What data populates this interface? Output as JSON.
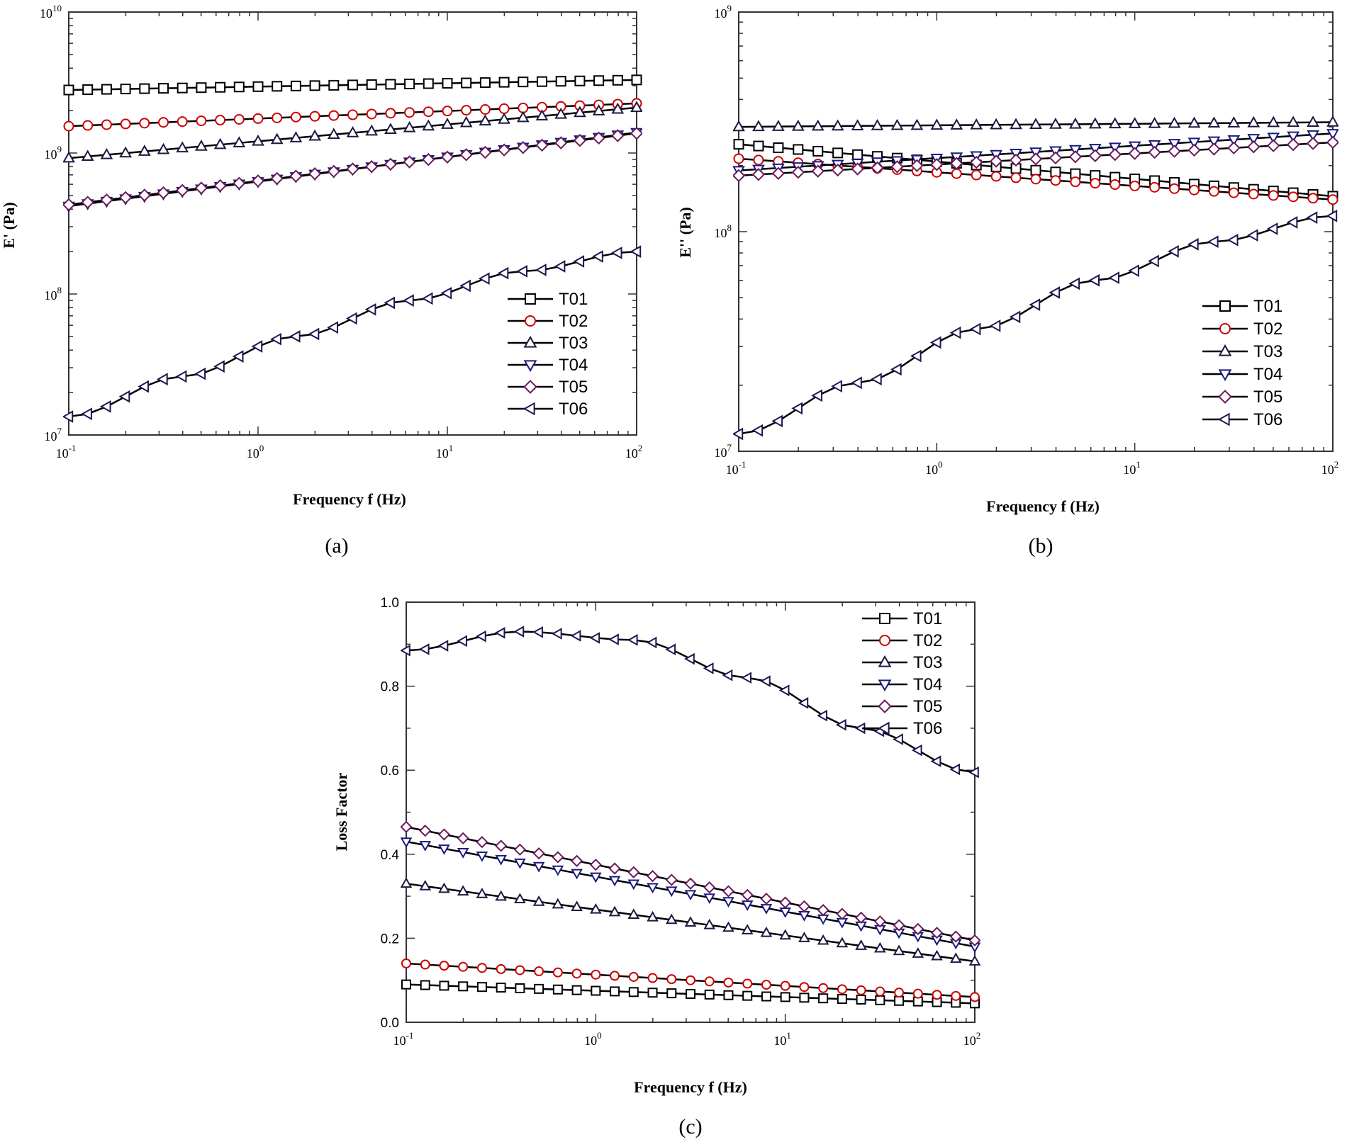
{
  "chart_data": [
    {
      "type": "line",
      "panel_label": "(a)",
      "title": "",
      "xlabel": "Frequency f (Hz)",
      "ylabel": "E' (Pa)",
      "xscale": "log",
      "yscale": "log",
      "xlim": [
        0.1,
        100
      ],
      "ylim": [
        10000000.0,
        10000000000.0
      ],
      "x_ticks": [
        0.1,
        1,
        10,
        100
      ],
      "x_tick_labels": [
        {
          "base": "10",
          "exp": "-1"
        },
        {
          "base": "10",
          "exp": "0"
        },
        {
          "base": "10",
          "exp": "1"
        },
        {
          "base": "10",
          "exp": "2"
        }
      ],
      "y_ticks": [
        10000000.0,
        100000000.0,
        1000000000.0,
        10000000000.0
      ],
      "y_tick_labels": [
        {
          "base": "10",
          "exp": "7"
        },
        {
          "base": "10",
          "exp": "8"
        },
        {
          "base": "10",
          "exp": "9"
        },
        {
          "base": "10",
          "exp": "10"
        }
      ],
      "legend_position": "bottom-right",
      "series": [
        {
          "name": "T01",
          "marker": "square",
          "color": "#000000",
          "start": 2800000000.0,
          "end": 3300000000.0
        },
        {
          "name": "T02",
          "marker": "circle",
          "color": "#cc0000",
          "start": 1550000000.0,
          "end": 2250000000.0
        },
        {
          "name": "T03",
          "marker": "triangle-up",
          "color": "#1a1a40",
          "start": 920000000.0,
          "end": 2100000000.0
        },
        {
          "name": "T04",
          "marker": "triangle-down",
          "color": "#1a1a80",
          "start": 420000000.0,
          "end": 1400000000.0
        },
        {
          "name": "T05",
          "marker": "diamond",
          "color": "#6a1a5a",
          "start": 430000000.0,
          "end": 1380000000.0
        },
        {
          "name": "T06",
          "marker": "triangle-left",
          "color": "#1a1a50",
          "start": 13500000.0,
          "end": 200000000.0,
          "curve": [
            13500000.0,
            26000000.0,
            50000000.0,
            90000000.0,
            145000000.0,
            200000000.0
          ]
        }
      ]
    },
    {
      "type": "line",
      "panel_label": "(b)",
      "title": "",
      "xlabel": "Frequency f (Hz)",
      "ylabel": "E'' (Pa)",
      "xscale": "log",
      "yscale": "log",
      "xlim": [
        0.1,
        100
      ],
      "ylim": [
        10000000.0,
        1000000000.0
      ],
      "x_ticks": [
        0.1,
        1,
        10,
        100
      ],
      "x_tick_labels": [
        {
          "base": "10",
          "exp": "-1"
        },
        {
          "base": "10",
          "exp": "0"
        },
        {
          "base": "10",
          "exp": "1"
        },
        {
          "base": "10",
          "exp": "2"
        }
      ],
      "y_ticks": [
        10000000.0,
        100000000.0,
        1000000000.0
      ],
      "y_tick_labels": [
        {
          "base": "10",
          "exp": "7"
        },
        {
          "base": "10",
          "exp": "8"
        },
        {
          "base": "10",
          "exp": "9"
        }
      ],
      "legend_position": "bottom-right",
      "series": [
        {
          "name": "T01",
          "marker": "square",
          "color": "#000000",
          "start": 250000000.0,
          "end": 145000000.0
        },
        {
          "name": "T02",
          "marker": "circle",
          "color": "#cc0000",
          "start": 215000000.0,
          "end": 140000000.0
        },
        {
          "name": "T03",
          "marker": "triangle-up",
          "color": "#1a1a40",
          "start": 300000000.0,
          "end": 315000000.0
        },
        {
          "name": "T04",
          "marker": "triangle-down",
          "color": "#1a1a80",
          "start": 190000000.0,
          "end": 280000000.0
        },
        {
          "name": "T05",
          "marker": "diamond",
          "color": "#6a1a5a",
          "start": 180000000.0,
          "end": 255000000.0
        },
        {
          "name": "T06",
          "marker": "triangle-left",
          "color": "#1a1a50",
          "start": 12000000.0,
          "end": 118000000.0,
          "curve": [
            12000000.0,
            20500000.0,
            36000000.0,
            60000000.0,
            90000000.0,
            118000000.0
          ]
        }
      ]
    },
    {
      "type": "line",
      "panel_label": "(c)",
      "title": "",
      "xlabel": "Frequency f (Hz)",
      "ylabel": "Loss Factor",
      "xscale": "log",
      "yscale": "linear",
      "xlim": [
        0.1,
        100
      ],
      "ylim": [
        0.0,
        1.0
      ],
      "x_ticks": [
        0.1,
        1,
        10,
        100
      ],
      "x_tick_labels": [
        {
          "base": "10",
          "exp": "-1"
        },
        {
          "base": "10",
          "exp": "0"
        },
        {
          "base": "10",
          "exp": "1"
        },
        {
          "base": "10",
          "exp": "2"
        }
      ],
      "y_ticks": [
        0.0,
        0.2,
        0.4,
        0.6,
        0.8,
        1.0
      ],
      "y_tick_labels": [
        "0.0",
        "0.2",
        "0.4",
        "0.6",
        "0.8",
        "1.0"
      ],
      "legend_position": "top-right",
      "series": [
        {
          "name": "T01",
          "marker": "square",
          "color": "#000000",
          "start": 0.09,
          "end": 0.045
        },
        {
          "name": "T02",
          "marker": "circle",
          "color": "#cc0000",
          "start": 0.14,
          "end": 0.06
        },
        {
          "name": "T03",
          "marker": "triangle-up",
          "color": "#1a1a40",
          "start": 0.33,
          "end": 0.145
        },
        {
          "name": "T04",
          "marker": "triangle-down",
          "color": "#1a1a80",
          "start": 0.43,
          "end": 0.18
        },
        {
          "name": "T05",
          "marker": "diamond",
          "color": "#6a1a5a",
          "start": 0.465,
          "end": 0.195
        },
        {
          "name": "T06",
          "marker": "triangle-left",
          "color": "#1a1a50",
          "start": 0.885,
          "end": 0.595,
          "curve": [
            0.885,
            0.93,
            0.91,
            0.82,
            0.7,
            0.595
          ]
        }
      ]
    }
  ]
}
